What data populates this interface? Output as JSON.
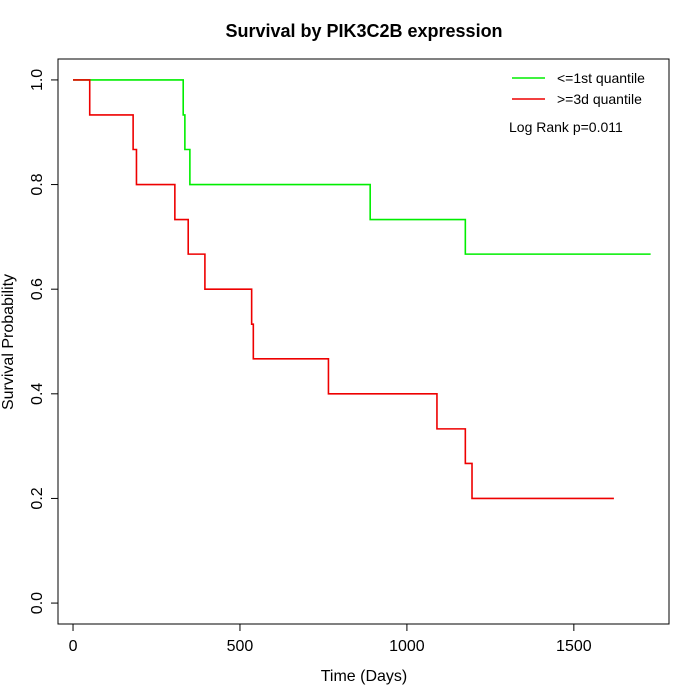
{
  "chart_data": {
    "type": "line",
    "title": "Survival by PIK3C2B expression",
    "xlabel": "Time (Days)",
    "ylabel": "Survival Probability",
    "xlim": [
      -45,
      1785
    ],
    "ylim": [
      -0.04,
      1.04
    ],
    "xticks": [
      0,
      500,
      1000,
      1500
    ],
    "yticks": [
      0.0,
      0.2,
      0.4,
      0.6,
      0.8,
      1.0
    ],
    "xtick_labels": [
      "0",
      "500",
      "1000",
      "1500"
    ],
    "ytick_labels": [
      "0.0",
      "0.2",
      "0.4",
      "0.6",
      "0.8",
      "1.0"
    ],
    "grid": false,
    "legend_position": "top-right",
    "annotation": "Log Rank p=0.011",
    "series": [
      {
        "name": "<=1st quantile",
        "color": "#00ee00",
        "steps": [
          [
            0,
            1.0
          ],
          [
            330,
            0.933
          ],
          [
            335,
            0.867
          ],
          [
            350,
            0.8
          ],
          [
            890,
            0.733
          ],
          [
            1175,
            0.667
          ],
          [
            1730,
            0.667
          ]
        ]
      },
      {
        "name": ">=3d quantile",
        "color": "#ee0000",
        "steps": [
          [
            0,
            1.0
          ],
          [
            50,
            0.933
          ],
          [
            180,
            0.867
          ],
          [
            190,
            0.8
          ],
          [
            305,
            0.733
          ],
          [
            345,
            0.667
          ],
          [
            395,
            0.6
          ],
          [
            535,
            0.533
          ],
          [
            540,
            0.467
          ],
          [
            765,
            0.4
          ],
          [
            1090,
            0.333
          ],
          [
            1175,
            0.267
          ],
          [
            1195,
            0.2
          ],
          [
            1620,
            0.2
          ]
        ]
      }
    ]
  }
}
